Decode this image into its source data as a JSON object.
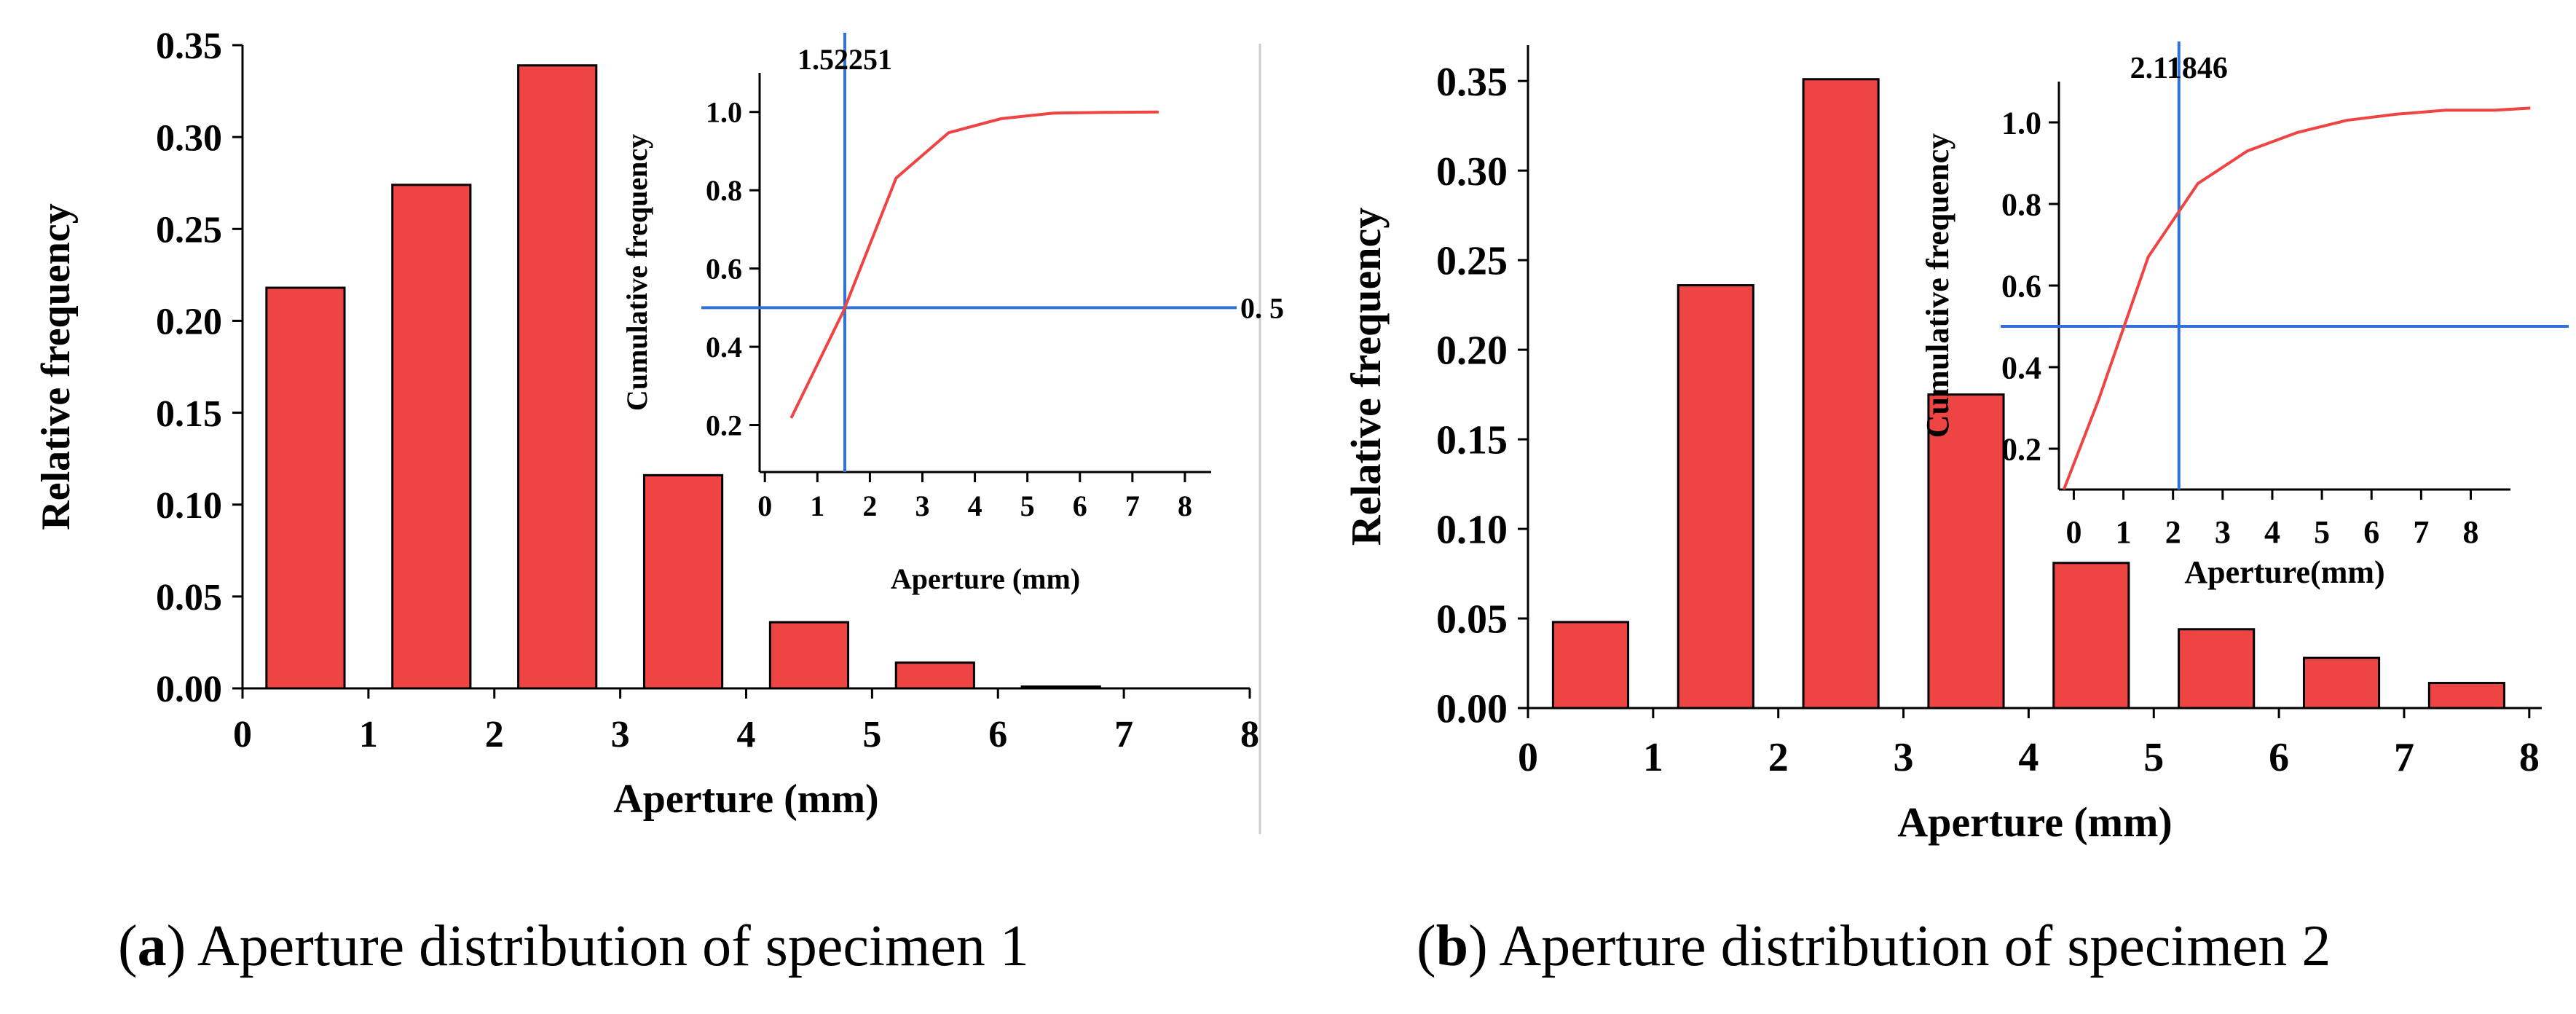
{
  "colors": {
    "bar_fill": "#ef4444",
    "bar_stroke": "#000000",
    "curve": "#ef4444",
    "reference_line": "#2f72d8",
    "axis": "#000000"
  },
  "panels": [
    {
      "caption": {
        "letter": "a",
        "text": "Aperture distribution of specimen 1"
      }
    },
    {
      "caption": {
        "letter": "b",
        "text": "Aperture distribution of specimen 2"
      }
    }
  ],
  "chart_data": [
    {
      "id": "a-main",
      "type": "bar",
      "xlabel": "Aperture (mm)",
      "ylabel": "Relative frequency",
      "xlim": [
        0,
        8
      ],
      "ylim": [
        0,
        0.35
      ],
      "xticks": [
        "0",
        "1",
        "2",
        "3",
        "4",
        "5",
        "6",
        "7",
        "8"
      ],
      "yticks": [
        "0.00",
        "0.05",
        "0.10",
        "0.15",
        "0.20",
        "0.25",
        "0.30",
        "0.35"
      ],
      "x": [
        0.5,
        1.5,
        2.5,
        3.5,
        4.5,
        5.5,
        6.5
      ],
      "values": [
        0.218,
        0.274,
        0.339,
        0.116,
        0.036,
        0.014,
        0.001
      ],
      "bar_width": 0.62
    },
    {
      "id": "a-inset",
      "type": "line",
      "xlabel": "Aperture (mm)",
      "ylabel": "Cumulative frequency",
      "xlim": [
        -0.1,
        8.5
      ],
      "ylim": [
        0.08,
        1.1
      ],
      "xticks": [
        "0",
        "1",
        "2",
        "3",
        "4",
        "5",
        "6",
        "7",
        "8"
      ],
      "yticks": [
        "0.2",
        "0.4",
        "0.6",
        "0.8",
        "1.0"
      ],
      "x": [
        0.5,
        1.5,
        2.5,
        3.5,
        4.5,
        5.5,
        6.5,
        7.5
      ],
      "y": [
        0.218,
        0.492,
        0.831,
        0.947,
        0.983,
        0.997,
        0.999,
        1.0
      ],
      "vline": {
        "x": 1.52251,
        "label": "1.52251"
      },
      "hline": {
        "y": 0.5,
        "label": "0. 5"
      }
    },
    {
      "id": "b-main",
      "type": "bar",
      "xlabel": "Aperture (mm)",
      "ylabel": "Relative frequency",
      "xlim": [
        0,
        8.1
      ],
      "ylim": [
        0,
        0.37
      ],
      "xticks": [
        "0",
        "1",
        "2",
        "3",
        "4",
        "5",
        "6",
        "7",
        "8"
      ],
      "yticks": [
        "0.00",
        "0.05",
        "0.10",
        "0.15",
        "0.20",
        "0.25",
        "0.30",
        "0.35"
      ],
      "x": [
        0.5,
        1.5,
        2.5,
        3.5,
        4.5,
        5.5,
        6.5,
        7.5
      ],
      "values": [
        0.048,
        0.236,
        0.351,
        0.175,
        0.081,
        0.044,
        0.028,
        0.014
      ],
      "bar_width": 0.6
    },
    {
      "id": "b-inset",
      "type": "line",
      "xlabel": "Aperture(mm)",
      "ylabel": "Cumulative frequency",
      "xlim": [
        -0.3,
        8.8
      ],
      "ylim": [
        0.1,
        1.1
      ],
      "xticks": [
        "0",
        "1",
        "2",
        "3",
        "4",
        "5",
        "6",
        "7",
        "8"
      ],
      "yticks": [
        "0.2",
        "0.4",
        "0.6",
        "0.8",
        "1.0"
      ],
      "x": [
        -0.2,
        0.5,
        1.5,
        2.5,
        3.5,
        4.5,
        5.5,
        6.5,
        7.5,
        8.5,
        9.2
      ],
      "y": [
        0.1,
        0.32,
        0.67,
        0.85,
        0.93,
        0.975,
        1.005,
        1.02,
        1.03,
        1.03,
        1.035
      ],
      "vline": {
        "x": 2.11846,
        "label": "2.11846"
      },
      "hline": {
        "y": 0.5,
        "label": ""
      }
    }
  ]
}
